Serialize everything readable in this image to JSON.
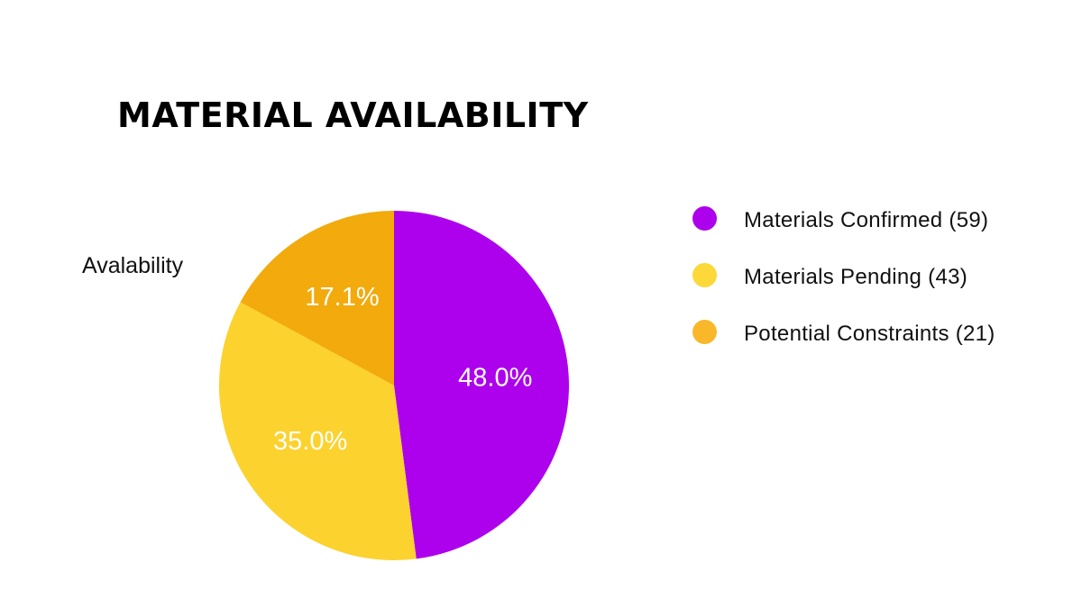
{
  "chart_data": {
    "type": "pie",
    "title": "MATERIAL AVAILABILITY",
    "series_label": "Avalability",
    "slices": [
      {
        "label": "Materials Confirmed",
        "count": 59,
        "percent": 48.0,
        "percent_label": "48.0%",
        "legend_label": "Materials Confirmed (59)",
        "color": "#AD00EC"
      },
      {
        "label": "Materials Pending",
        "count": 43,
        "percent": 35.0,
        "percent_label": "35.0%",
        "legend_label": "Materials Pending (43)",
        "color": "#FCD22E"
      },
      {
        "label": "Potential Constraints",
        "count": 21,
        "percent": 17.1,
        "percent_label": "17.1%",
        "legend_label": "Potential Constraints (21)",
        "color": "#F2AA0C"
      }
    ],
    "legend_position": "right",
    "legend_dot_colors": [
      "#AD00EC",
      "#FCD838",
      "#F9B72A"
    ]
  }
}
